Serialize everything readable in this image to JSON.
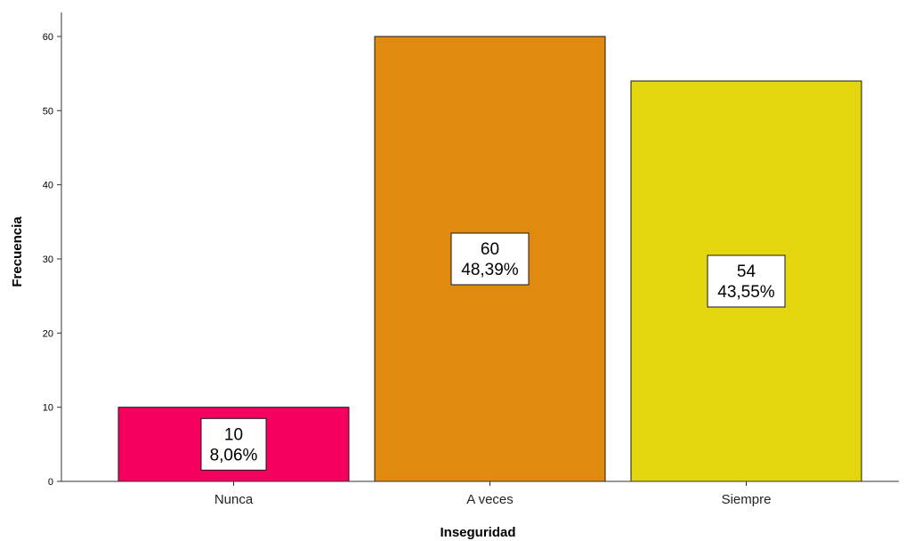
{
  "chart_data": {
    "type": "bar",
    "xlabel": "Inseguridad",
    "ylabel": "Frecuencia",
    "ylim": [
      0,
      64
    ],
    "yticks": [
      0,
      10,
      20,
      30,
      40,
      50,
      60
    ],
    "grid": false,
    "categories": [
      "Nunca",
      "A veces",
      "Siempre"
    ],
    "values": [
      10,
      60,
      54
    ],
    "percent_labels": [
      "8,06%",
      "48,39%",
      "43,55%"
    ],
    "colors": [
      "#f5005e",
      "#e08a10",
      "#e3d60e"
    ]
  }
}
